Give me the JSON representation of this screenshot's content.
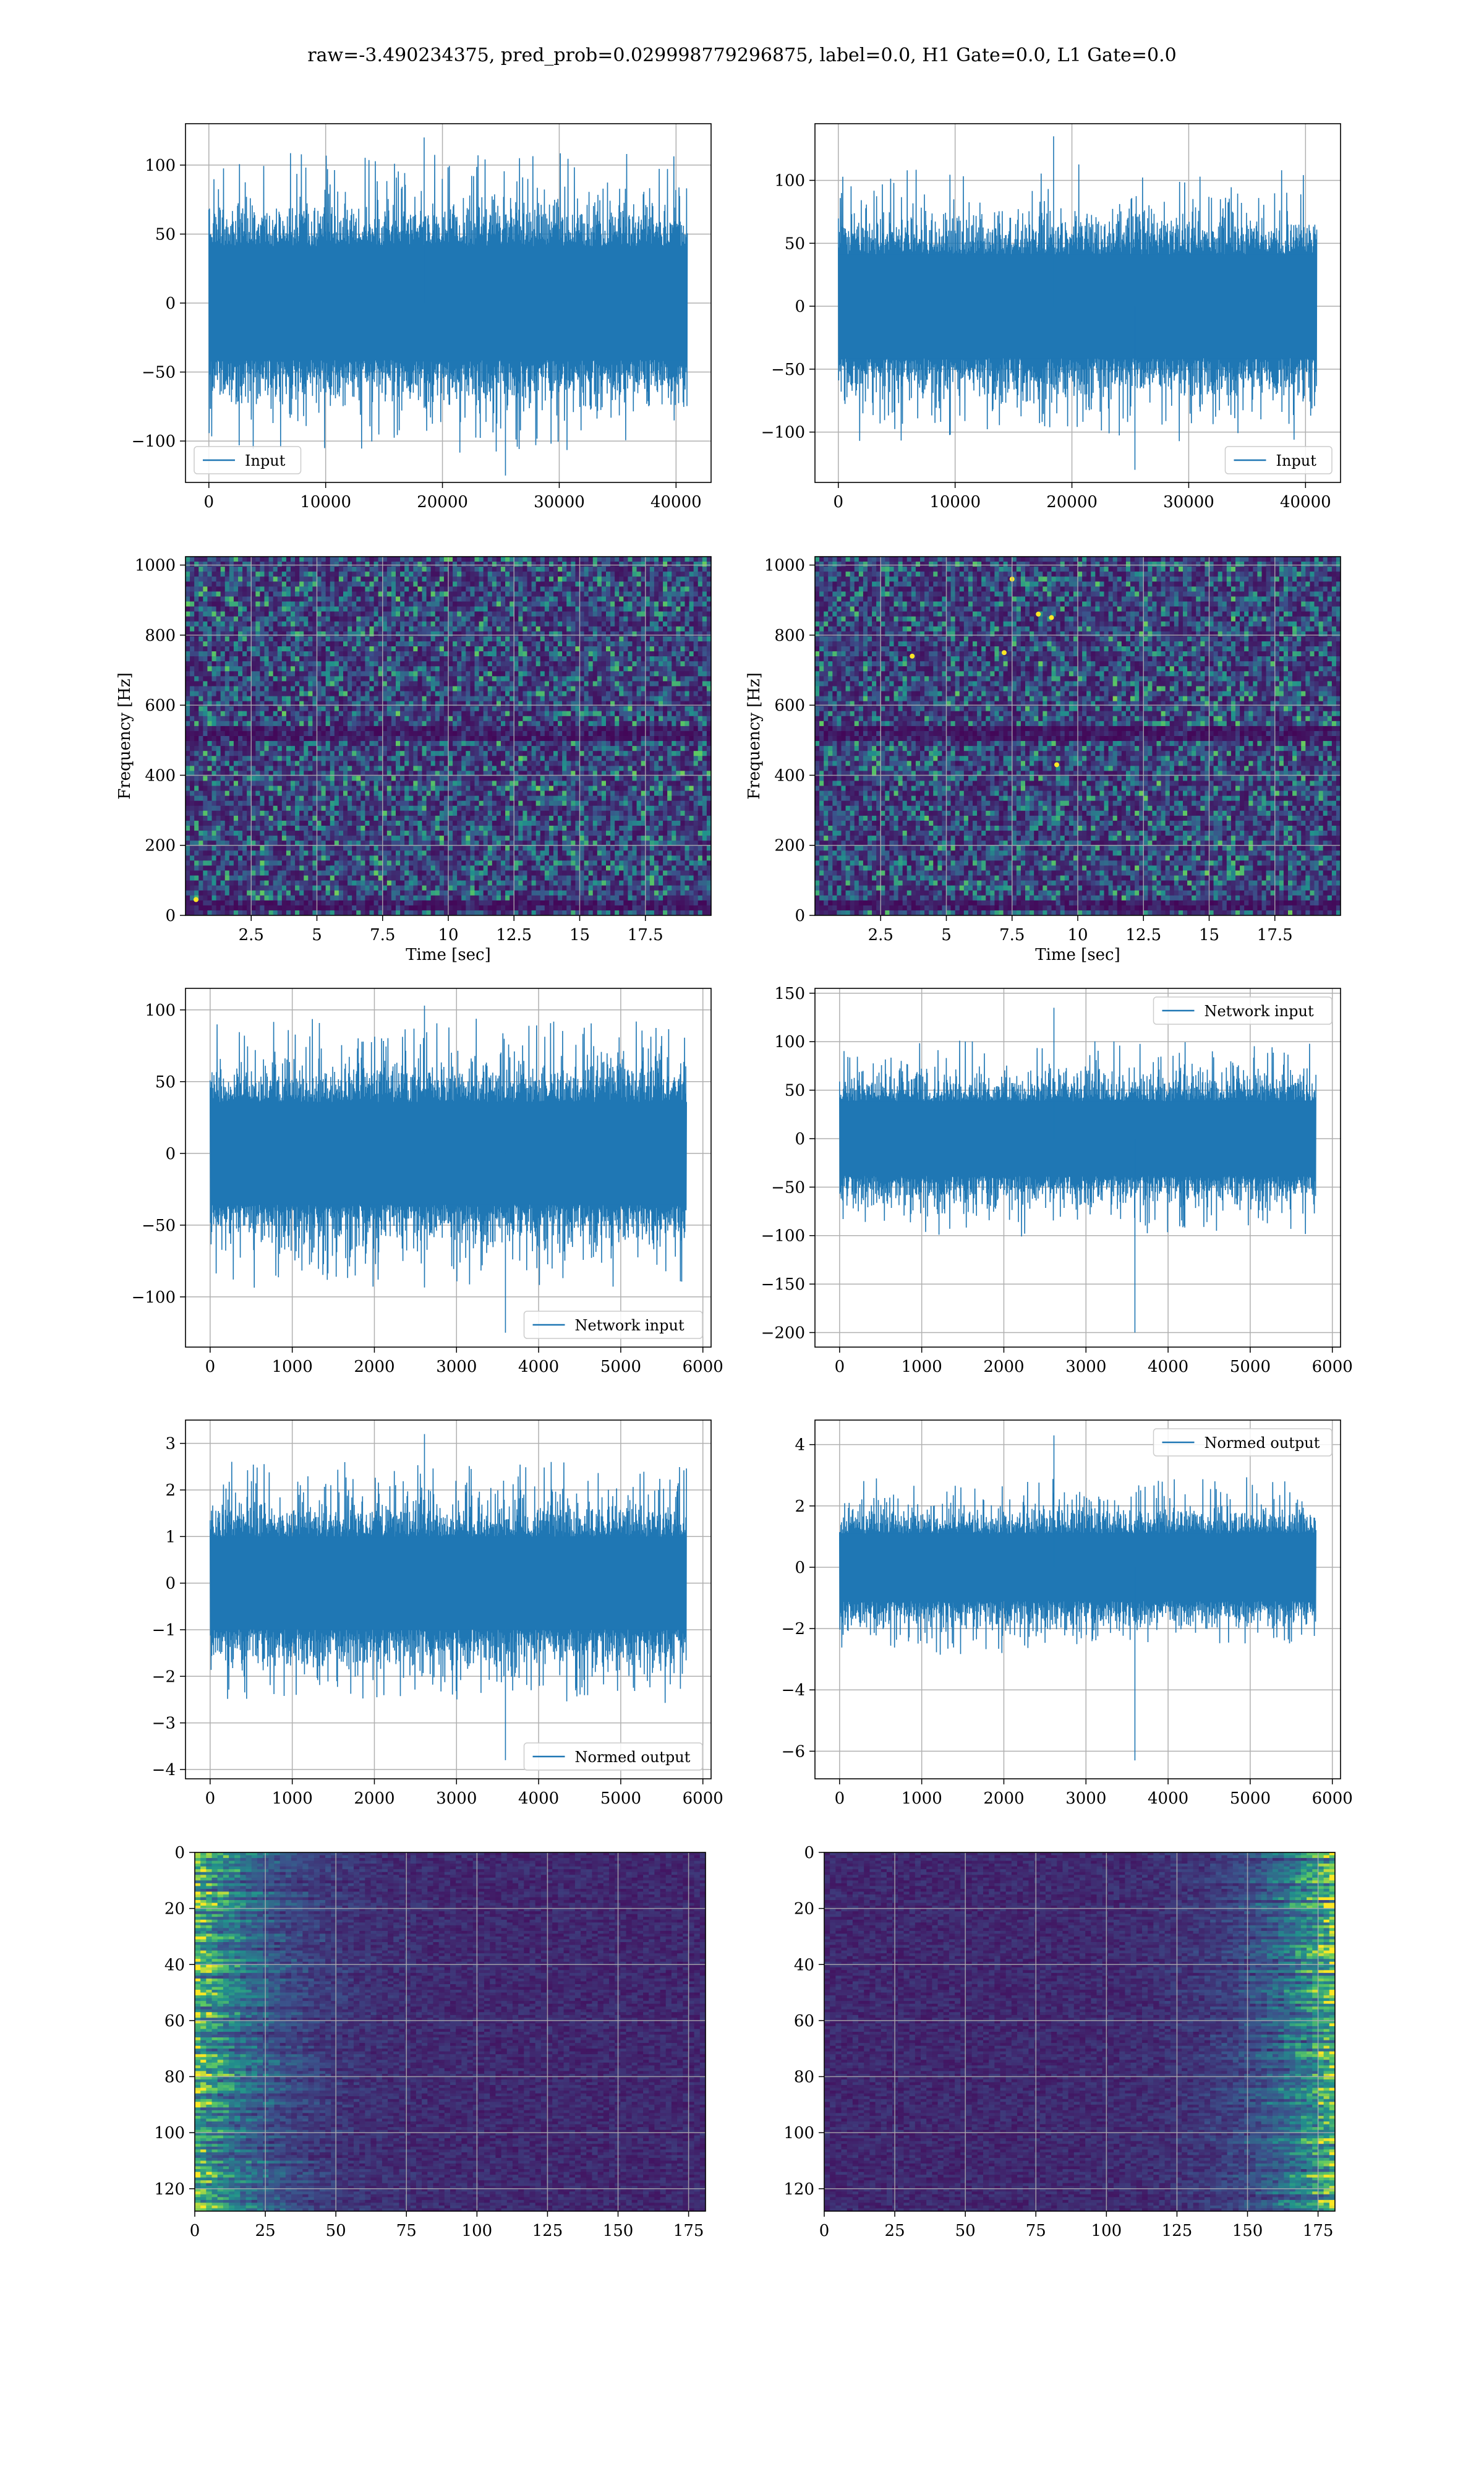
{
  "figure": {
    "title": "raw=-3.490234375, pred_prob=0.029998779296875, label=0.0, H1 Gate=0.0, L1 Gate=0.0"
  },
  "colors": {
    "line": "#1f77b4",
    "grid": "#b0b0b0",
    "viridis_low": "#440154",
    "viridis_mid": "#21918c",
    "viridis_high": "#fde725"
  },
  "chart_data": [
    {
      "id": "h1-input",
      "type": "line",
      "legend_position": "lower-left",
      "grid": true,
      "series": [
        {
          "name": "Input",
          "x_range": [
            0,
            40960
          ],
          "amplitude_envelope": 75,
          "peak_min": -125,
          "peak_max": 120
        }
      ],
      "xlim": [
        -2000,
        43000
      ],
      "ylim": [
        -130,
        130
      ],
      "xticks": [
        0,
        10000,
        20000,
        30000,
        40000
      ],
      "yticks": [
        -100,
        -50,
        0,
        50,
        100
      ],
      "xlabel": "",
      "ylabel": ""
    },
    {
      "id": "l1-input",
      "type": "line",
      "legend_position": "lower-right",
      "grid": true,
      "series": [
        {
          "name": "Input",
          "x_range": [
            0,
            40960
          ],
          "amplitude_envelope": 75,
          "peak_min": -130,
          "peak_max": 135
        }
      ],
      "xlim": [
        -2000,
        43000
      ],
      "ylim": [
        -140,
        145
      ],
      "xticks": [
        0,
        10000,
        20000,
        30000,
        40000
      ],
      "yticks": [
        -100,
        -50,
        0,
        50,
        100
      ],
      "xlabel": "",
      "ylabel": ""
    },
    {
      "id": "h1-spectrogram",
      "type": "heatmap",
      "colormap": "viridis",
      "grid": true,
      "xlim": [
        0,
        20
      ],
      "ylim": [
        0,
        1024
      ],
      "xticks": [
        2.5,
        5.0,
        7.5,
        10.0,
        12.5,
        15.0,
        17.5
      ],
      "yticks": [
        0,
        200,
        400,
        600,
        800,
        1000
      ],
      "xlabel": "Time [sec]",
      "ylabel": "Frequency [Hz]",
      "hotspots": [
        [
          0.4,
          45
        ]
      ]
    },
    {
      "id": "l1-spectrogram",
      "type": "heatmap",
      "colormap": "viridis",
      "grid": true,
      "xlim": [
        0,
        20
      ],
      "ylim": [
        0,
        1024
      ],
      "xticks": [
        2.5,
        5.0,
        7.5,
        10.0,
        12.5,
        15.0,
        17.5
      ],
      "yticks": [
        0,
        200,
        400,
        600,
        800,
        1000
      ],
      "xlabel": "Time [sec]",
      "ylabel": "Frequency [Hz]",
      "hotspots": [
        [
          7.5,
          960
        ],
        [
          8.5,
          860
        ],
        [
          9.0,
          850
        ],
        [
          7.2,
          750
        ],
        [
          9.2,
          430
        ],
        [
          3.7,
          740
        ]
      ]
    },
    {
      "id": "h1-network-input",
      "type": "line",
      "legend_position": "lower-right",
      "grid": true,
      "series": [
        {
          "name": "Network input",
          "x_range": [
            0,
            5800
          ],
          "amplitude_envelope": 65,
          "peak_min": -125,
          "peak_max": 103
        }
      ],
      "xlim": [
        -300,
        6100
      ],
      "ylim": [
        -135,
        115
      ],
      "xticks": [
        0,
        1000,
        2000,
        3000,
        4000,
        5000,
        6000
      ],
      "yticks": [
        -100,
        -50,
        0,
        50,
        100
      ],
      "xlabel": "",
      "ylabel": ""
    },
    {
      "id": "l1-network-input",
      "type": "line",
      "legend_position": "upper-right",
      "grid": true,
      "series": [
        {
          "name": "Network input",
          "x_range": [
            0,
            5800
          ],
          "amplitude_envelope": 70,
          "peak_min": -200,
          "peak_max": 135
        }
      ],
      "xlim": [
        -300,
        6100
      ],
      "ylim": [
        -215,
        155
      ],
      "xticks": [
        0,
        1000,
        2000,
        3000,
        4000,
        5000,
        6000
      ],
      "yticks": [
        -200,
        -150,
        -100,
        -50,
        0,
        50,
        100,
        150
      ],
      "xlabel": "",
      "ylabel": ""
    },
    {
      "id": "h1-normed-output",
      "type": "line",
      "legend_position": "lower-right",
      "grid": true,
      "series": [
        {
          "name": "Normed output",
          "x_range": [
            0,
            5800
          ],
          "amplitude_envelope": 1.8,
          "peak_min": -3.8,
          "peak_max": 3.2
        }
      ],
      "xlim": [
        -300,
        6100
      ],
      "ylim": [
        -4.2,
        3.5
      ],
      "xticks": [
        0,
        1000,
        2000,
        3000,
        4000,
        5000,
        6000
      ],
      "yticks": [
        -4,
        -3,
        -2,
        -1,
        0,
        1,
        2,
        3
      ],
      "xlabel": "",
      "ylabel": ""
    },
    {
      "id": "l1-normed-output",
      "type": "line",
      "legend_position": "upper-right",
      "grid": true,
      "series": [
        {
          "name": "Normed output",
          "x_range": [
            0,
            5800
          ],
          "amplitude_envelope": 2,
          "peak_min": -6.3,
          "peak_max": 4.3
        }
      ],
      "xlim": [
        -300,
        6100
      ],
      "ylim": [
        -6.9,
        4.8
      ],
      "xticks": [
        0,
        1000,
        2000,
        3000,
        4000,
        5000,
        6000
      ],
      "yticks": [
        -6,
        -4,
        -2,
        0,
        2,
        4
      ],
      "xlabel": "",
      "ylabel": ""
    },
    {
      "id": "h1-features",
      "type": "heatmap",
      "colormap": "viridis",
      "grid": true,
      "xlim": [
        0,
        181
      ],
      "ylim": [
        128,
        0
      ],
      "xticks": [
        0,
        25,
        50,
        75,
        100,
        125,
        150,
        175
      ],
      "yticks": [
        0,
        20,
        40,
        60,
        80,
        100,
        120
      ],
      "xlabel": "",
      "ylabel": "",
      "bright_side": "left"
    },
    {
      "id": "l1-features",
      "type": "heatmap",
      "colormap": "viridis",
      "grid": true,
      "xlim": [
        0,
        181
      ],
      "ylim": [
        128,
        0
      ],
      "xticks": [
        0,
        25,
        50,
        75,
        100,
        125,
        150,
        175
      ],
      "yticks": [
        0,
        20,
        40,
        60,
        80,
        100,
        120
      ],
      "xlabel": "",
      "ylabel": "",
      "bright_side": "right"
    }
  ]
}
